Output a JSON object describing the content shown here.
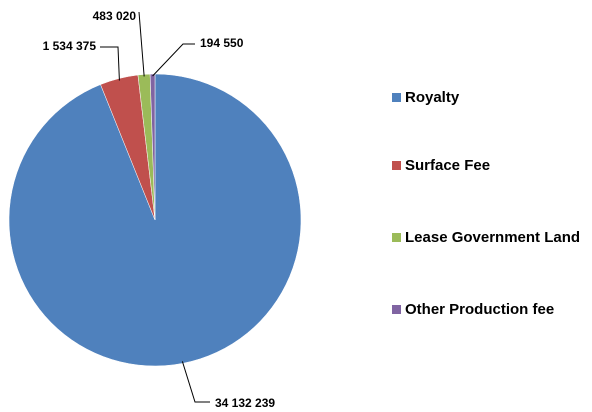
{
  "chart_data": {
    "type": "pie",
    "categories": [
      "Royalty",
      "Surface Fee",
      "Lease Government Land",
      "Other Production fee"
    ],
    "values": [
      34132239,
      1534375,
      483020,
      194550
    ],
    "value_labels": [
      "34 132 239",
      "1 534 375",
      "483 020",
      "194 550"
    ],
    "colors": [
      "#4f81bd",
      "#c0504d",
      "#9bbb59",
      "#8064a2"
    ],
    "legend": "right"
  }
}
